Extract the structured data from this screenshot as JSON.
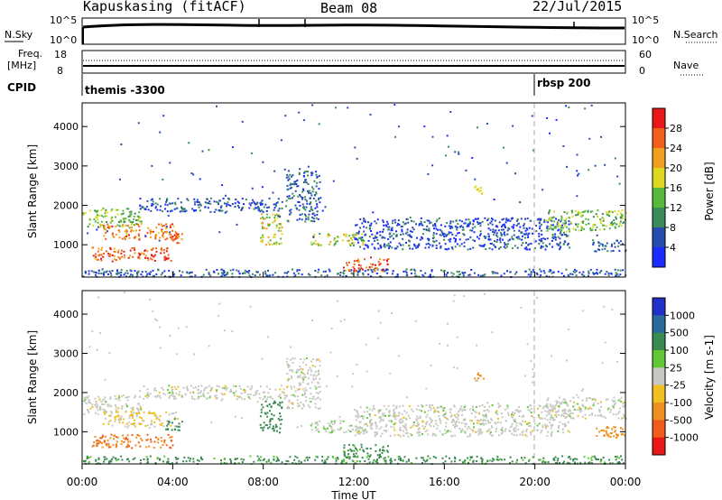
{
  "header": {
    "station": "Kapuskasing (fitACF)",
    "beam": "Beam 08",
    "date": "22/Jul/2015"
  },
  "nsky_panel": {
    "left_label": "N.Sky",
    "right_label": "N.Search",
    "left_ticks": [
      "10^5",
      "10^0"
    ],
    "right_ticks": [
      "10^5",
      "10^0"
    ]
  },
  "freq_panel": {
    "left_label_line1": "Freq.",
    "left_label_line2": "[MHz]",
    "right_label": "Nave",
    "left_ticks": [
      "18",
      "8"
    ],
    "right_ticks": [
      "60",
      "0"
    ]
  },
  "cpid_panel": {
    "label": "CPID",
    "segments": [
      {
        "text": "themis -3300",
        "start_hour": 0
      },
      {
        "text": "rbsp 200",
        "start_hour": 20
      }
    ]
  },
  "power_panel": {
    "ylabel": "Slant Range [km]",
    "yticks": [
      "1000",
      "2000",
      "3000",
      "4000"
    ],
    "colorbar_label": "Power [dB]",
    "colorbar_ticks": [
      "4",
      "8",
      "12",
      "16",
      "20",
      "24",
      "28"
    ],
    "colors": [
      "#1a2cff",
      "#274cb0",
      "#3a8a5a",
      "#58b83c",
      "#e0d820",
      "#f0a020",
      "#f06018",
      "#e81818"
    ]
  },
  "velocity_panel": {
    "ylabel": "Slant Range [km]",
    "yticks": [
      "1000",
      "2000",
      "3000",
      "4000"
    ],
    "colorbar_label": "Velocity [m s-1]",
    "colorbar_ticks": [
      "1000",
      "500",
      "100",
      "25",
      "-25",
      "-100",
      "-500",
      "-1000"
    ],
    "colors": [
      "#2030c8",
      "#2a6a9a",
      "#3a8a52",
      "#62c838",
      "#c8c8c4",
      "#f0c020",
      "#f09020",
      "#f05c1c",
      "#e81818"
    ]
  },
  "xaxis": {
    "label": "Time UT",
    "ticks": [
      "00:00",
      "04:00",
      "08:00",
      "12:00",
      "16:00",
      "20:00",
      "00:00"
    ]
  },
  "chart_data": {
    "type": "heatmap",
    "x_unit": "hours UT",
    "xlim": [
      0,
      24
    ],
    "ylim": [
      180,
      4600
    ],
    "regions": [
      {
        "t0": 0.0,
        "t1": 2.6,
        "r0": 1450,
        "r1": 1950,
        "power": 14,
        "vel": 0
      },
      {
        "t0": 0.9,
        "t1": 4.2,
        "r0": 1150,
        "r1": 1550,
        "power": 24,
        "vel": -30
      },
      {
        "t0": 0.4,
        "t1": 4.0,
        "r0": 600,
        "r1": 950,
        "power": 27,
        "vel": -300
      },
      {
        "t0": 3.6,
        "t1": 4.4,
        "r0": 1050,
        "r1": 1350,
        "power": 26,
        "vel": 200
      },
      {
        "t0": 2.5,
        "t1": 9.0,
        "r0": 1850,
        "r1": 2200,
        "power": 6,
        "vel": 0
      },
      {
        "t0": 7.8,
        "t1": 8.8,
        "r0": 1000,
        "r1": 1800,
        "power": 18,
        "vel": 120
      },
      {
        "t0": 9.0,
        "t1": 10.5,
        "r0": 1600,
        "r1": 2900,
        "power": 7,
        "vel": 0
      },
      {
        "t0": 10.0,
        "t1": 12.5,
        "r0": 1000,
        "r1": 1300,
        "power": 16,
        "vel": 20
      },
      {
        "t0": 11.5,
        "t1": 13.5,
        "r0": 350,
        "r1": 700,
        "power": 27,
        "vel": 80
      },
      {
        "t0": 12.0,
        "t1": 21.5,
        "r0": 900,
        "r1": 1700,
        "power": 5,
        "vel": 0
      },
      {
        "t0": 17.3,
        "t1": 17.8,
        "r0": 2300,
        "r1": 2550,
        "power": 20,
        "vel": -150
      },
      {
        "t0": 20.5,
        "t1": 24.0,
        "r0": 1350,
        "r1": 1900,
        "power": 14,
        "vel": 0
      },
      {
        "t0": 22.5,
        "t1": 24.0,
        "r0": 850,
        "r1": 1150,
        "power": 6,
        "vel": -200
      },
      {
        "t0": 0.0,
        "t1": 24.0,
        "r0": 200,
        "r1": 400,
        "power": 6,
        "vel": 80
      }
    ]
  }
}
